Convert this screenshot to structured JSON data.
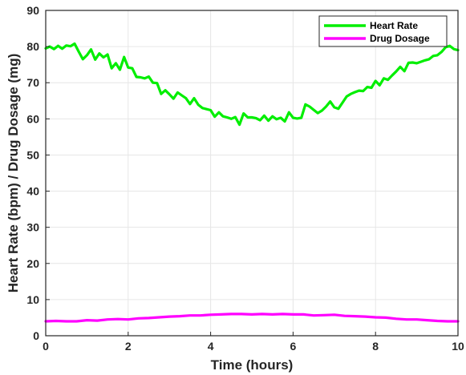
{
  "chart_data": {
    "type": "line",
    "xlabel": "Time (hours)",
    "ylabel": "Heart Rate (bpm) / Drug Dosage (mg)",
    "xlim": [
      0,
      10
    ],
    "ylim": [
      0,
      90
    ],
    "xticks": [
      "0",
      "2",
      "4",
      "6",
      "8",
      "10"
    ],
    "yticks": [
      "0",
      "10",
      "20",
      "30",
      "40",
      "50",
      "60",
      "70",
      "80",
      "90"
    ],
    "grid": true,
    "legend_position": "top-right",
    "series": [
      {
        "name": "Heart Rate",
        "color": "#00ee00",
        "x": [
          0,
          0.1,
          0.2,
          0.3,
          0.4,
          0.5,
          0.6,
          0.7,
          0.8,
          0.9,
          1.0,
          1.1,
          1.2,
          1.3,
          1.4,
          1.5,
          1.6,
          1.7,
          1.8,
          1.9,
          2.0,
          2.1,
          2.2,
          2.3,
          2.4,
          2.5,
          2.6,
          2.7,
          2.8,
          2.9,
          3.0,
          3.1,
          3.2,
          3.3,
          3.4,
          3.5,
          3.6,
          3.7,
          3.8,
          3.9,
          4.0,
          4.1,
          4.2,
          4.3,
          4.4,
          4.5,
          4.6,
          4.7,
          4.8,
          4.9,
          5.0,
          5.1,
          5.2,
          5.3,
          5.4,
          5.5,
          5.6,
          5.7,
          5.8,
          5.9,
          6.0,
          6.1,
          6.2,
          6.3,
          6.4,
          6.5,
          6.6,
          6.7,
          6.8,
          6.9,
          7.0,
          7.1,
          7.2,
          7.3,
          7.4,
          7.5,
          7.6,
          7.7,
          7.8,
          7.9,
          8.0,
          8.1,
          8.2,
          8.3,
          8.4,
          8.5,
          8.6,
          8.7,
          8.8,
          8.9,
          9.0,
          9.1,
          9.2,
          9.3,
          9.4,
          9.5,
          9.6,
          9.7,
          9.8,
          9.9,
          10.0
        ],
        "y": [
          79.5,
          80.0,
          79.3,
          80.2,
          79.4,
          80.3,
          80.1,
          80.8,
          78.6,
          76.5,
          77.6,
          79.2,
          76.4,
          78.1,
          77.0,
          77.8,
          74.0,
          75.4,
          73.6,
          77.1,
          74.2,
          74.0,
          71.6,
          71.5,
          71.2,
          71.7,
          70.0,
          69.9,
          66.9,
          67.9,
          66.8,
          65.6,
          67.3,
          66.5,
          65.7,
          64.1,
          65.7,
          63.9,
          63.0,
          62.7,
          62.4,
          60.6,
          61.8,
          60.7,
          60.4,
          60.0,
          60.5,
          58.4,
          61.5,
          60.4,
          60.4,
          60.2,
          59.6,
          60.9,
          59.5,
          60.7,
          59.9,
          60.3,
          59.3,
          61.8,
          60.3,
          60.1,
          60.3,
          64.0,
          63.4,
          62.5,
          61.6,
          62.3,
          63.4,
          64.8,
          63.2,
          62.8,
          64.5,
          66.2,
          66.9,
          67.4,
          67.8,
          67.7,
          68.8,
          68.6,
          70.5,
          69.3,
          71.2,
          70.8,
          72.0,
          73.1,
          74.4,
          73.2,
          75.5,
          75.6,
          75.4,
          75.8,
          76.2,
          76.5,
          77.4,
          77.6,
          78.5,
          79.8,
          80.2,
          79.3,
          79.0
        ]
      },
      {
        "name": "Drug Dosage",
        "color": "#ff00ff",
        "x": [
          0,
          0.25,
          0.5,
          0.75,
          1.0,
          1.25,
          1.5,
          1.75,
          2.0,
          2.25,
          2.5,
          2.75,
          3.0,
          3.25,
          3.5,
          3.75,
          4.0,
          4.25,
          4.5,
          4.75,
          5.0,
          5.25,
          5.5,
          5.75,
          6.0,
          6.25,
          6.5,
          6.75,
          7.0,
          7.25,
          7.5,
          7.75,
          8.0,
          8.25,
          8.5,
          8.75,
          9.0,
          9.25,
          9.5,
          9.75,
          10.0
        ],
        "y": [
          4.0,
          4.1,
          4.0,
          4.0,
          4.3,
          4.2,
          4.5,
          4.6,
          4.5,
          4.8,
          4.9,
          5.1,
          5.3,
          5.4,
          5.6,
          5.6,
          5.8,
          5.9,
          6.0,
          6.0,
          5.9,
          6.0,
          5.9,
          6.0,
          5.9,
          5.9,
          5.6,
          5.7,
          5.8,
          5.5,
          5.4,
          5.3,
          5.1,
          5.0,
          4.7,
          4.5,
          4.5,
          4.3,
          4.1,
          4.0,
          4.0
        ]
      }
    ]
  }
}
